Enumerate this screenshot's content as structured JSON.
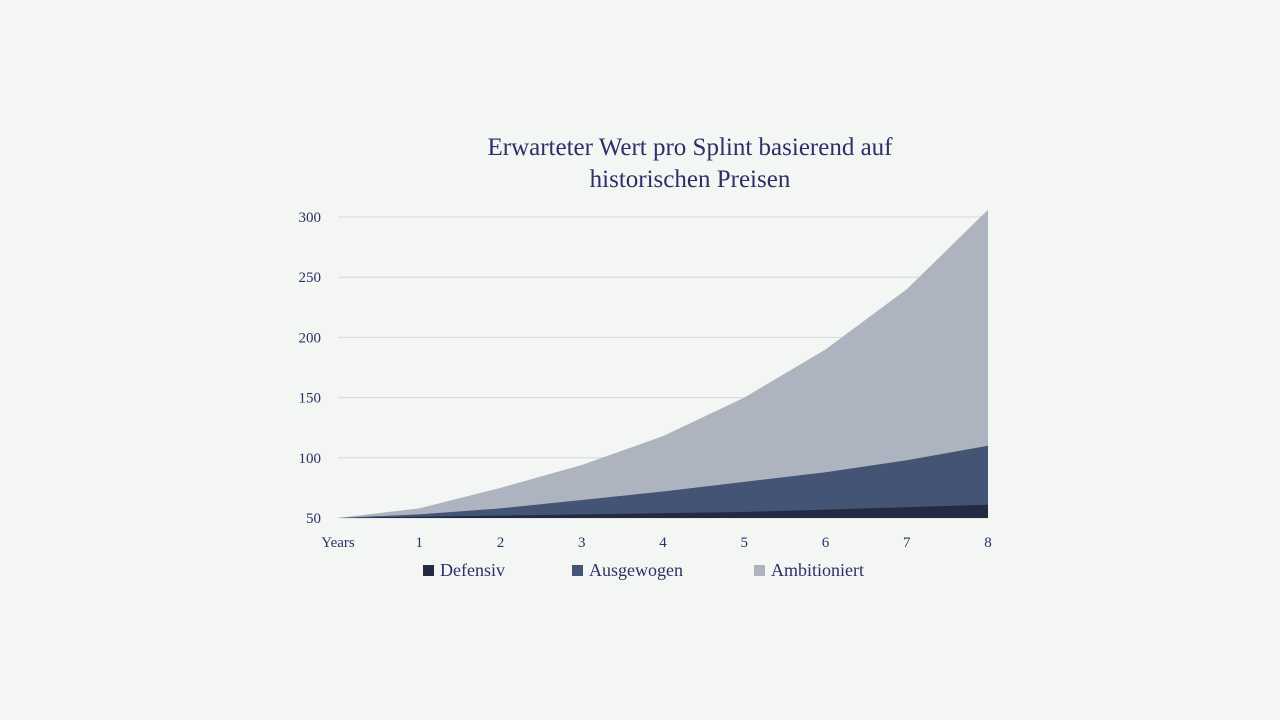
{
  "chart_data": {
    "type": "area",
    "stacked": false,
    "title": [
      "Erwarteter Wert pro Splint basierend auf",
      "historischen Preisen"
    ],
    "xlabel": "Years",
    "x": [
      0,
      1,
      2,
      3,
      4,
      5,
      6,
      7,
      8
    ],
    "x_tick_labels": [
      "1",
      "2",
      "3",
      "4",
      "5",
      "6",
      "7",
      "8"
    ],
    "ylim": [
      50,
      300
    ],
    "y_ticks": [
      50,
      100,
      150,
      200,
      250,
      300
    ],
    "grid": true,
    "legend_position": "bottom",
    "series": [
      {
        "name": "Ambitioniert",
        "color": "#adb3bf",
        "values": [
          50,
          58,
          75,
          94,
          118,
          150,
          190,
          240,
          306
        ]
      },
      {
        "name": "Ausgewogen",
        "color": "#445475",
        "values": [
          50,
          53,
          58,
          65,
          72,
          80,
          88,
          98,
          110
        ]
      },
      {
        "name": "Defensiv",
        "color": "#232a42",
        "values": [
          50,
          51,
          52,
          53,
          54,
          55,
          57,
          59,
          61
        ]
      }
    ],
    "legend": [
      {
        "name": "Defensiv",
        "color": "#232a42"
      },
      {
        "name": "Ausgewogen",
        "color": "#445475"
      },
      {
        "name": "Ambitioniert",
        "color": "#adb3bf"
      }
    ]
  }
}
